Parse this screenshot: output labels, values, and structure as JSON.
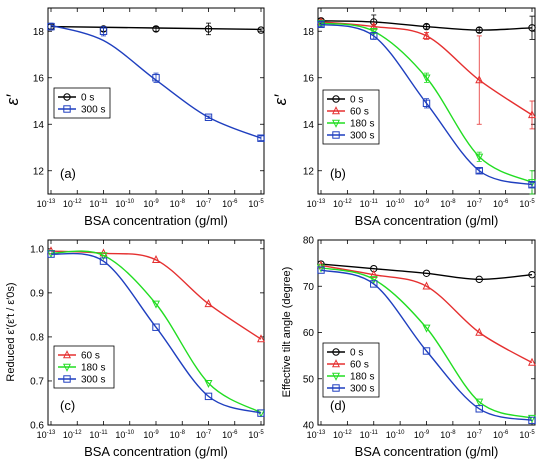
{
  "chart_data": [
    {
      "panel": "(a)",
      "type": "line",
      "xlabel": "BSA concentration (g/ml)",
      "ylabel": "ε′",
      "xscale": "log",
      "xlim": [
        1e-13,
        1e-05
      ],
      "ylim": [
        11,
        19
      ],
      "yticks": [
        12,
        14,
        16,
        18
      ],
      "grid": false,
      "legend_position": "middle-left",
      "series": [
        {
          "name": "0 s",
          "color": "#000000",
          "marker": "circle",
          "x": [
            1e-13,
            1e-11,
            1e-09,
            1e-07,
            1e-05
          ],
          "y": [
            18.2,
            18.1,
            18.1,
            18.1,
            18.05
          ],
          "yerr": [
            0.1,
            0.1,
            0.1,
            0.25,
            0.05
          ],
          "fit": [
            18.2,
            18.08
          ]
        },
        {
          "name": "300 s",
          "color": "#1f3fbf",
          "marker": "square",
          "x": [
            1e-13,
            1e-11,
            1e-09,
            1e-07,
            1e-05
          ],
          "y": [
            18.2,
            18.0,
            16.0,
            14.3,
            13.4
          ],
          "yerr": [
            0.15,
            0.2,
            0.2,
            0.05,
            0.1
          ],
          "fit": [
            18.25,
            17.6,
            15.9,
            14.3,
            13.4
          ]
        }
      ]
    },
    {
      "panel": "(b)",
      "type": "line",
      "xlabel": "BSA concentration (g/ml)",
      "ylabel": "ε′",
      "xscale": "log",
      "xlim": [
        1e-13,
        1e-05
      ],
      "ylim": [
        11,
        19
      ],
      "yticks": [
        12,
        14,
        16,
        18
      ],
      "grid": false,
      "legend_position": "lower-left",
      "series": [
        {
          "name": "0 s",
          "color": "#000000",
          "marker": "circle",
          "x": [
            1e-13,
            1e-11,
            1e-09,
            1e-07,
            1e-05
          ],
          "y": [
            18.45,
            18.4,
            18.2,
            18.05,
            18.15
          ],
          "yerr": [
            0.1,
            0.3,
            0.1,
            0.1,
            0.5
          ]
        },
        {
          "name": "60 s",
          "color": "#e53030",
          "marker": "triangle-up",
          "x": [
            1e-13,
            1e-11,
            1e-09,
            1e-07,
            1e-05
          ],
          "y": [
            18.4,
            18.2,
            17.8,
            15.9,
            14.4
          ],
          "yerr": [
            0.1,
            0.1,
            0.15,
            1.9,
            0.6
          ]
        },
        {
          "name": "180 s",
          "color": "#22dd22",
          "marker": "triangle-down",
          "x": [
            1e-13,
            1e-11,
            1e-09,
            1e-07,
            1e-05
          ],
          "y": [
            18.35,
            18.0,
            16.0,
            12.6,
            11.5
          ],
          "yerr": [
            0.1,
            0.1,
            0.2,
            0.2,
            0.5
          ]
        },
        {
          "name": "300 s",
          "color": "#1f3fbf",
          "marker": "square",
          "x": [
            1e-13,
            1e-11,
            1e-09,
            1e-07,
            1e-05
          ],
          "y": [
            18.3,
            17.8,
            14.9,
            12.0,
            11.4
          ],
          "yerr": [
            0.1,
            0.15,
            0.2,
            0.1,
            0.1
          ]
        }
      ]
    },
    {
      "panel": "(c)",
      "type": "line",
      "xlabel": "BSA concentration (g/ml)",
      "ylabel": "Reduced ε′(ε′t / ε′0s)",
      "xscale": "log",
      "xlim": [
        1e-13,
        1e-05
      ],
      "ylim": [
        0.6,
        1.02
      ],
      "yticks": [
        0.6,
        0.7,
        0.8,
        0.9,
        1.0
      ],
      "ytick_labels": [
        "0.6",
        "0.7",
        "0.8",
        "0.9",
        "1.0"
      ],
      "grid": false,
      "legend_position": "lower-left",
      "series": [
        {
          "name": "60 s",
          "color": "#e53030",
          "marker": "triangle-up",
          "x": [
            1e-13,
            1e-11,
            1e-09,
            1e-07,
            1e-05
          ],
          "y": [
            0.995,
            0.99,
            0.975,
            0.875,
            0.795
          ]
        },
        {
          "name": "180 s",
          "color": "#22dd22",
          "marker": "triangle-down",
          "x": [
            1e-13,
            1e-11,
            1e-09,
            1e-07,
            1e-05
          ],
          "y": [
            0.99,
            0.985,
            0.875,
            0.695,
            0.628
          ]
        },
        {
          "name": "300 s",
          "color": "#1f3fbf",
          "marker": "square",
          "x": [
            1e-13,
            1e-11,
            1e-09,
            1e-07,
            1e-05
          ],
          "y": [
            0.988,
            0.972,
            0.822,
            0.665,
            0.627
          ]
        }
      ]
    },
    {
      "panel": "(d)",
      "type": "line",
      "xlabel": "BSA concentration (g/ml)",
      "ylabel": "Effective tilt angle (degree)",
      "xscale": "log",
      "xlim": [
        1e-13,
        1e-05
      ],
      "ylim": [
        40,
        80
      ],
      "yticks": [
        40,
        50,
        60,
        70,
        80
      ],
      "grid": false,
      "legend_position": "lower-left",
      "series": [
        {
          "name": "0 s",
          "color": "#000000",
          "marker": "circle",
          "x": [
            1e-13,
            1e-11,
            1e-09,
            1e-07,
            1e-05
          ],
          "y": [
            74.8,
            73.8,
            72.8,
            71.5,
            72.5
          ]
        },
        {
          "name": "60 s",
          "color": "#e53030",
          "marker": "triangle-up",
          "x": [
            1e-13,
            1e-11,
            1e-09,
            1e-07,
            1e-05
          ],
          "y": [
            74.5,
            72.5,
            70.0,
            60.0,
            53.5
          ]
        },
        {
          "name": "180 s",
          "color": "#22dd22",
          "marker": "triangle-down",
          "x": [
            1e-13,
            1e-11,
            1e-09,
            1e-07,
            1e-05
          ],
          "y": [
            74.0,
            71.5,
            61.0,
            45.0,
            41.5
          ]
        },
        {
          "name": "300 s",
          "color": "#1f3fbf",
          "marker": "square",
          "x": [
            1e-13,
            1e-11,
            1e-09,
            1e-07,
            1e-05
          ],
          "y": [
            73.5,
            70.5,
            56.0,
            43.5,
            41.0
          ]
        }
      ]
    }
  ]
}
